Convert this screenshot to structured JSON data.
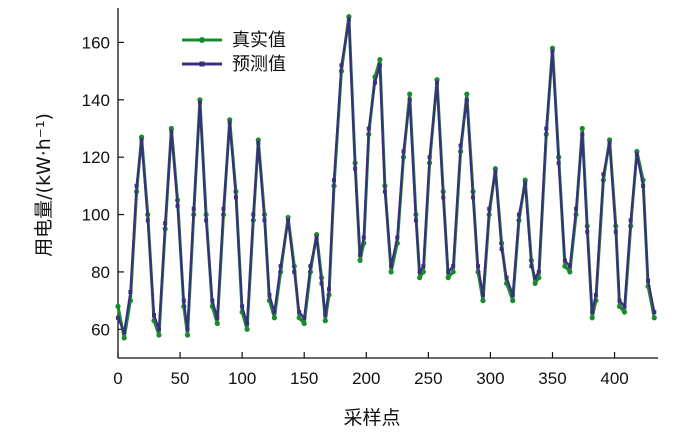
{
  "chart_data": {
    "type": "line",
    "xlabel": "采样点",
    "ylabel": "用电量/(kW·h⁻¹)",
    "xlim": [
      0,
      435
    ],
    "ylim": [
      50,
      172
    ],
    "xticks": [
      0,
      50,
      100,
      150,
      200,
      250,
      300,
      350,
      400
    ],
    "yticks": [
      60,
      80,
      100,
      120,
      140,
      160
    ],
    "legend": "top-left",
    "grid": false,
    "series": [
      {
        "name": "真实值",
        "color": "#1a8a2e",
        "marker": "circle",
        "points": [
          [
            0,
            68
          ],
          [
            5,
            57
          ],
          [
            10,
            70
          ],
          [
            15,
            108
          ],
          [
            19,
            127
          ],
          [
            24,
            100
          ],
          [
            29,
            63
          ],
          [
            33,
            58
          ],
          [
            38,
            95
          ],
          [
            43,
            130
          ],
          [
            48,
            105
          ],
          [
            53,
            68
          ],
          [
            56,
            58
          ],
          [
            61,
            100
          ],
          [
            66,
            140
          ],
          [
            71,
            100
          ],
          [
            76,
            68
          ],
          [
            80,
            62
          ],
          [
            85,
            100
          ],
          [
            90,
            133
          ],
          [
            95,
            108
          ],
          [
            100,
            66
          ],
          [
            104,
            60
          ],
          [
            109,
            98
          ],
          [
            113,
            126
          ],
          [
            118,
            100
          ],
          [
            122,
            70
          ],
          [
            126,
            64
          ],
          [
            131,
            80
          ],
          [
            137,
            99
          ],
          [
            142,
            82
          ],
          [
            146,
            64
          ],
          [
            150,
            62
          ],
          [
            155,
            80
          ],
          [
            160,
            93
          ],
          [
            164,
            78
          ],
          [
            167,
            63
          ],
          [
            170,
            72
          ],
          [
            174,
            110
          ],
          [
            180,
            150
          ],
          [
            186,
            169
          ],
          [
            191,
            118
          ],
          [
            195,
            84
          ],
          [
            198,
            90
          ],
          [
            202,
            128
          ],
          [
            207,
            148
          ],
          [
            211,
            154
          ],
          [
            215,
            110
          ],
          [
            220,
            80
          ],
          [
            225,
            90
          ],
          [
            230,
            120
          ],
          [
            235,
            142
          ],
          [
            240,
            100
          ],
          [
            243,
            78
          ],
          [
            246,
            80
          ],
          [
            251,
            118
          ],
          [
            257,
            147
          ],
          [
            262,
            108
          ],
          [
            266,
            78
          ],
          [
            270,
            80
          ],
          [
            276,
            122
          ],
          [
            281,
            142
          ],
          [
            286,
            108
          ],
          [
            290,
            80
          ],
          [
            294,
            70
          ],
          [
            299,
            100
          ],
          [
            304,
            116
          ],
          [
            309,
            90
          ],
          [
            313,
            76
          ],
          [
            318,
            70
          ],
          [
            323,
            98
          ],
          [
            328,
            112
          ],
          [
            333,
            84
          ],
          [
            336,
            76
          ],
          [
            339,
            78
          ],
          [
            345,
            128
          ],
          [
            350,
            158
          ],
          [
            355,
            120
          ],
          [
            360,
            82
          ],
          [
            364,
            80
          ],
          [
            369,
            100
          ],
          [
            374,
            130
          ],
          [
            378,
            96
          ],
          [
            382,
            64
          ],
          [
            385,
            70
          ],
          [
            391,
            112
          ],
          [
            396,
            126
          ],
          [
            401,
            96
          ],
          [
            404,
            68
          ],
          [
            408,
            66
          ],
          [
            413,
            96
          ],
          [
            418,
            122
          ],
          [
            423,
            112
          ],
          [
            427,
            75
          ],
          [
            432,
            64
          ]
        ]
      },
      {
        "name": "预测值",
        "color": "#3b2e82",
        "marker": "square",
        "points": [
          [
            0,
            64
          ],
          [
            5,
            59
          ],
          [
            10,
            73
          ],
          [
            15,
            110
          ],
          [
            19,
            126
          ],
          [
            24,
            98
          ],
          [
            29,
            65
          ],
          [
            33,
            60
          ],
          [
            38,
            97
          ],
          [
            43,
            129
          ],
          [
            48,
            103
          ],
          [
            53,
            70
          ],
          [
            56,
            60
          ],
          [
            61,
            102
          ],
          [
            66,
            139
          ],
          [
            71,
            98
          ],
          [
            76,
            70
          ],
          [
            80,
            64
          ],
          [
            85,
            102
          ],
          [
            90,
            132
          ],
          [
            95,
            106
          ],
          [
            100,
            68
          ],
          [
            104,
            62
          ],
          [
            109,
            100
          ],
          [
            113,
            125
          ],
          [
            118,
            98
          ],
          [
            122,
            72
          ],
          [
            126,
            66
          ],
          [
            131,
            82
          ],
          [
            137,
            98
          ],
          [
            142,
            80
          ],
          [
            146,
            66
          ],
          [
            150,
            64
          ],
          [
            155,
            82
          ],
          [
            160,
            92
          ],
          [
            164,
            76
          ],
          [
            167,
            65
          ],
          [
            170,
            74
          ],
          [
            174,
            112
          ],
          [
            180,
            152
          ],
          [
            186,
            168
          ],
          [
            191,
            116
          ],
          [
            195,
            86
          ],
          [
            198,
            92
          ],
          [
            202,
            130
          ],
          [
            207,
            146
          ],
          [
            211,
            152
          ],
          [
            215,
            108
          ],
          [
            220,
            82
          ],
          [
            225,
            92
          ],
          [
            230,
            122
          ],
          [
            235,
            140
          ],
          [
            240,
            98
          ],
          [
            243,
            80
          ],
          [
            246,
            82
          ],
          [
            251,
            120
          ],
          [
            257,
            146
          ],
          [
            262,
            106
          ],
          [
            266,
            80
          ],
          [
            270,
            82
          ],
          [
            276,
            124
          ],
          [
            281,
            140
          ],
          [
            286,
            106
          ],
          [
            290,
            82
          ],
          [
            294,
            72
          ],
          [
            299,
            102
          ],
          [
            304,
            115
          ],
          [
            309,
            88
          ],
          [
            313,
            78
          ],
          [
            318,
            72
          ],
          [
            323,
            100
          ],
          [
            328,
            111
          ],
          [
            333,
            82
          ],
          [
            336,
            78
          ],
          [
            339,
            80
          ],
          [
            345,
            130
          ],
          [
            350,
            157
          ],
          [
            355,
            118
          ],
          [
            360,
            84
          ],
          [
            364,
            82
          ],
          [
            369,
            102
          ],
          [
            374,
            128
          ],
          [
            378,
            94
          ],
          [
            382,
            66
          ],
          [
            385,
            72
          ],
          [
            391,
            114
          ],
          [
            396,
            125
          ],
          [
            401,
            94
          ],
          [
            404,
            70
          ],
          [
            408,
            68
          ],
          [
            413,
            98
          ],
          [
            418,
            121
          ],
          [
            423,
            110
          ],
          [
            427,
            77
          ],
          [
            432,
            66
          ]
        ]
      }
    ]
  }
}
